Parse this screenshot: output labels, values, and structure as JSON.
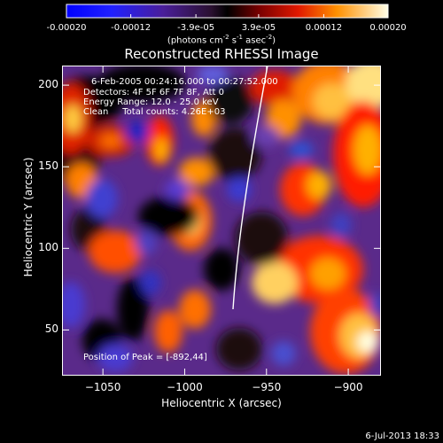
{
  "colorbar": {
    "ticks": [
      "-0.00020",
      "-0.00012",
      "-3.9e-05",
      "3.9e-05",
      "0.00012",
      "0.00020"
    ],
    "tick_values": [
      -0.0002,
      -0.00012,
      -3.9e-05,
      3.9e-05,
      0.00012,
      0.0002
    ],
    "range": [
      -0.0002,
      0.0002
    ],
    "unit_prefix": "(photons cm",
    "unit_exp1": "-2",
    "unit_mid": " s",
    "unit_exp2": "-1",
    "unit_mid2": " asec",
    "unit_exp3": "-2",
    "unit_suffix": ")"
  },
  "chart_data": {
    "type": "heatmap",
    "title": "Reconstructed RHESSI Image",
    "xlabel": "Heliocentric X (arcsec)",
    "ylabel": "Heliocentric Y (arcsec)",
    "xlim": [
      -1075,
      -880
    ],
    "ylim": [
      22,
      212
    ],
    "xticks": [
      -1050,
      -1000,
      -950,
      -900
    ],
    "yticks": [
      50,
      100,
      150,
      200
    ],
    "xtick_labels": [
      "−1050",
      "−1000",
      "−950",
      "−900"
    ],
    "ytick_labels": [
      "50",
      "100",
      "150",
      "200"
    ],
    "peak_position": [
      -892,
      44
    ]
  },
  "info": {
    "line1": "6-Feb-2005 00:24:16.000 to 00:27:52.000",
    "line2": "Detectors: 4F 5F 6F 7F 8F, Att 0",
    "line3": "Energy Range: 12.0 - 25.0 keV",
    "line4": "Clean     Total counts: 4.26E+03",
    "peak": "Position of Peak = [-892,44]"
  },
  "footer": "6-Jul-2013 18:33",
  "colors": {
    "background": "#000000",
    "limb": "#ffffff"
  }
}
